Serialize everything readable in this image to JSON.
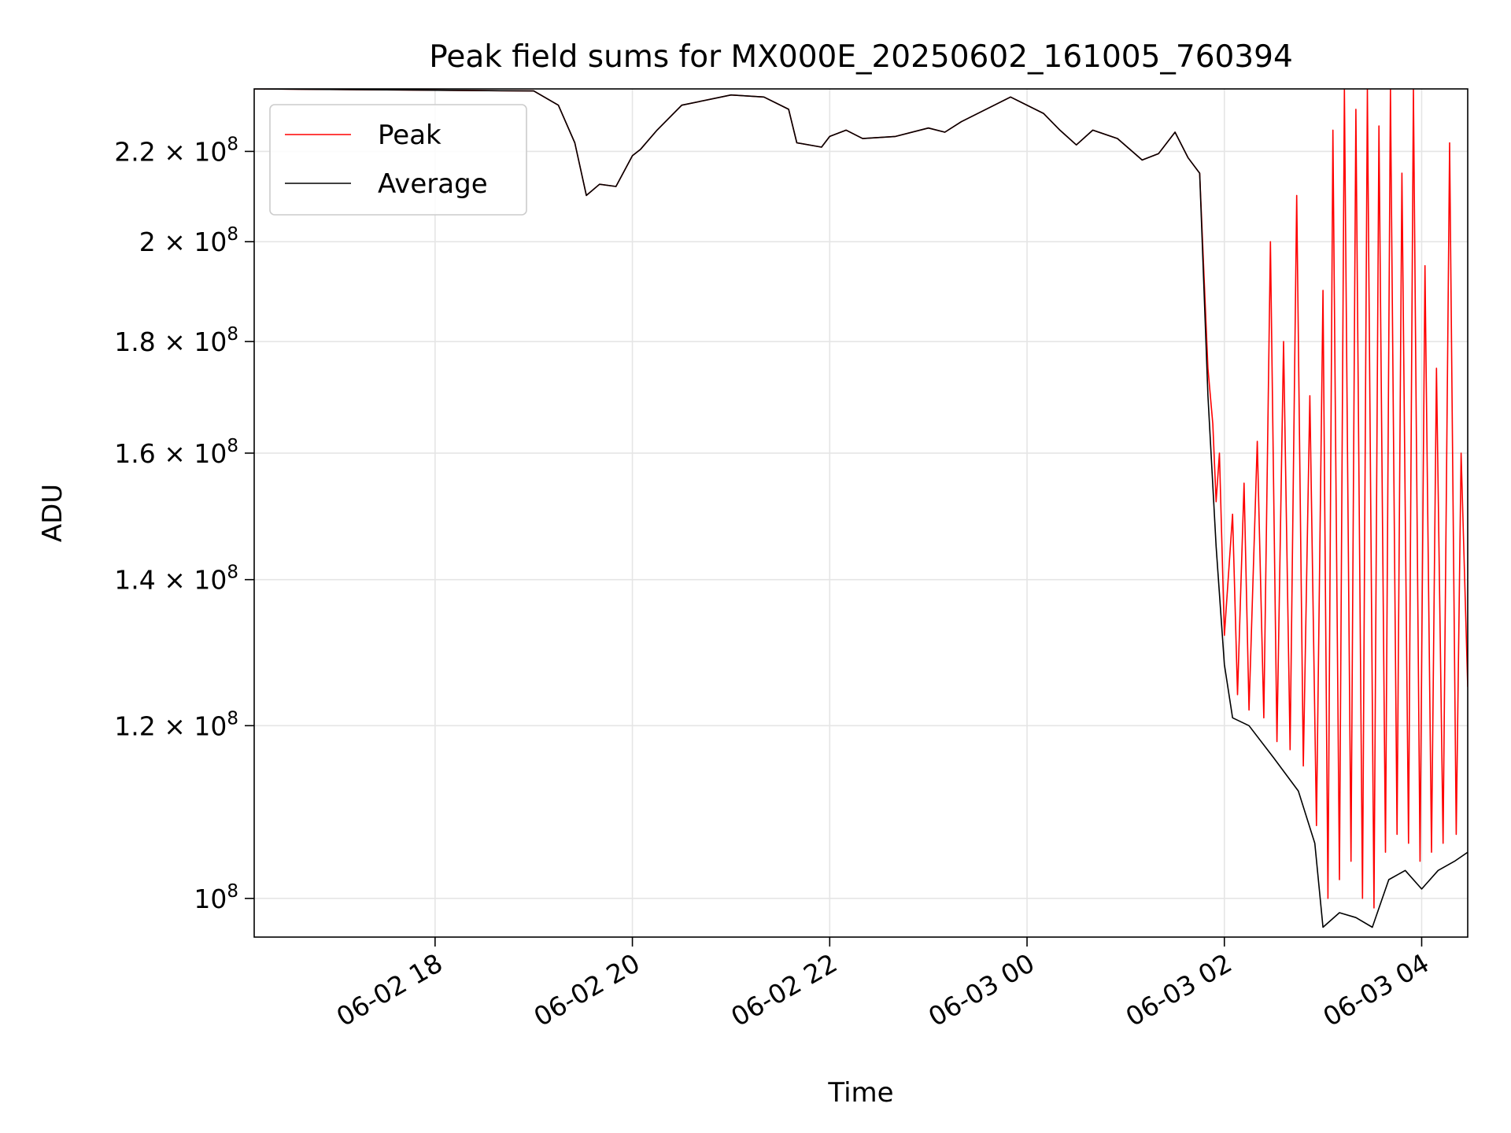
{
  "chart_data": {
    "type": "line",
    "title": "Peak field sums for MX000E_20250602_161005_760394",
    "xlabel": "Time",
    "ylabel": "ADU",
    "yscale": "log",
    "grid": true,
    "legend_position": "top-left",
    "xlim": [
      "2025-06-02T16:10",
      "2025-06-03T04:28"
    ],
    "ylim": [
      96000000,
      235000000
    ],
    "xticks": [
      {
        "t": "2025-06-02T18:00",
        "label": "06-02 18"
      },
      {
        "t": "2025-06-02T20:00",
        "label": "06-02 20"
      },
      {
        "t": "2025-06-02T22:00",
        "label": "06-02 22"
      },
      {
        "t": "2025-06-03T00:00",
        "label": "06-03 00"
      },
      {
        "t": "2025-06-03T02:00",
        "label": "06-03 02"
      },
      {
        "t": "2025-06-03T04:00",
        "label": "06-03 04"
      }
    ],
    "yticks": [
      {
        "value": 100000000,
        "base": "10",
        "exp": "8"
      },
      {
        "value": 120000000,
        "base": "1.2 × 10",
        "exp": "8"
      },
      {
        "value": 140000000,
        "base": "1.4 × 10",
        "exp": "8"
      },
      {
        "value": 160000000,
        "base": "1.6 × 10",
        "exp": "8"
      },
      {
        "value": 180000000,
        "base": "1.8 × 10",
        "exp": "8"
      },
      {
        "value": 200000000,
        "base": "2 × 10",
        "exp": "8"
      },
      {
        "value": 220000000,
        "base": "2.2 × 10",
        "exp": "8"
      }
    ],
    "series": [
      {
        "name": "Average",
        "color": "#000000",
        "points": [
          [
            "2025-06-02T16:10",
            235000000
          ],
          [
            "2025-06-02T19:00",
            234500000
          ],
          [
            "2025-06-02T19:15",
            231000000
          ],
          [
            "2025-06-02T19:25",
            222000000
          ],
          [
            "2025-06-02T19:32",
            210000000
          ],
          [
            "2025-06-02T19:40",
            212500000
          ],
          [
            "2025-06-02T19:50",
            212000000
          ],
          [
            "2025-06-02T20:00",
            219000000
          ],
          [
            "2025-06-02T20:05",
            220500000
          ],
          [
            "2025-06-02T20:15",
            225000000
          ],
          [
            "2025-06-02T20:30",
            231000000
          ],
          [
            "2025-06-02T21:00",
            233500000
          ],
          [
            "2025-06-02T21:20",
            233000000
          ],
          [
            "2025-06-02T21:35",
            230000000
          ],
          [
            "2025-06-02T21:40",
            222000000
          ],
          [
            "2025-06-02T21:55",
            221000000
          ],
          [
            "2025-06-02T22:00",
            223500000
          ],
          [
            "2025-06-02T22:10",
            225000000
          ],
          [
            "2025-06-02T22:20",
            223000000
          ],
          [
            "2025-06-02T22:40",
            223500000
          ],
          [
            "2025-06-02T23:00",
            225500000
          ],
          [
            "2025-06-02T23:10",
            224500000
          ],
          [
            "2025-06-02T23:20",
            227000000
          ],
          [
            "2025-06-02T23:50",
            233000000
          ],
          [
            "2025-06-03T00:10",
            229000000
          ],
          [
            "2025-06-03T00:20",
            225000000
          ],
          [
            "2025-06-03T00:30",
            221500000
          ],
          [
            "2025-06-03T00:40",
            225000000
          ],
          [
            "2025-06-03T00:55",
            223000000
          ],
          [
            "2025-06-03T01:10",
            218000000
          ],
          [
            "2025-06-03T01:20",
            219500000
          ],
          [
            "2025-06-03T01:30",
            224500000
          ],
          [
            "2025-06-03T01:38",
            218500000
          ],
          [
            "2025-06-03T01:45",
            215000000
          ],
          [
            "2025-06-03T01:50",
            170000000
          ],
          [
            "2025-06-03T01:55",
            145000000
          ],
          [
            "2025-06-03T02:00",
            128000000
          ],
          [
            "2025-06-03T02:05",
            121000000
          ],
          [
            "2025-06-03T02:15",
            120000000
          ],
          [
            "2025-06-03T02:30",
            116000000
          ],
          [
            "2025-06-03T02:45",
            112000000
          ],
          [
            "2025-06-03T02:55",
            106000000
          ],
          [
            "2025-06-03T03:00",
            97000000
          ],
          [
            "2025-06-03T03:10",
            98500000
          ],
          [
            "2025-06-03T03:20",
            98000000
          ],
          [
            "2025-06-03T03:30",
            97000000
          ],
          [
            "2025-06-03T03:40",
            102000000
          ],
          [
            "2025-06-03T03:50",
            103000000
          ],
          [
            "2025-06-03T04:00",
            101000000
          ],
          [
            "2025-06-03T04:10",
            103000000
          ],
          [
            "2025-06-03T04:20",
            104000000
          ],
          [
            "2025-06-03T04:28",
            105000000
          ]
        ]
      },
      {
        "name": "Peak",
        "color": "#ff0000",
        "points": [
          [
            "2025-06-02T16:10",
            235000000
          ],
          [
            "2025-06-02T19:00",
            234500000
          ],
          [
            "2025-06-02T19:15",
            231000000
          ],
          [
            "2025-06-02T19:25",
            222000000
          ],
          [
            "2025-06-02T19:32",
            210000000
          ],
          [
            "2025-06-02T19:40",
            212500000
          ],
          [
            "2025-06-02T19:50",
            212000000
          ],
          [
            "2025-06-02T20:00",
            219000000
          ],
          [
            "2025-06-02T20:05",
            220500000
          ],
          [
            "2025-06-02T20:15",
            225000000
          ],
          [
            "2025-06-02T20:30",
            231000000
          ],
          [
            "2025-06-02T21:00",
            233500000
          ],
          [
            "2025-06-02T21:20",
            233000000
          ],
          [
            "2025-06-02T21:35",
            230000000
          ],
          [
            "2025-06-02T21:40",
            222000000
          ],
          [
            "2025-06-02T21:55",
            221000000
          ],
          [
            "2025-06-02T22:00",
            223500000
          ],
          [
            "2025-06-02T22:10",
            225000000
          ],
          [
            "2025-06-02T22:20",
            223000000
          ],
          [
            "2025-06-02T22:40",
            223500000
          ],
          [
            "2025-06-02T23:00",
            225500000
          ],
          [
            "2025-06-02T23:10",
            224500000
          ],
          [
            "2025-06-02T23:20",
            227000000
          ],
          [
            "2025-06-02T23:50",
            233000000
          ],
          [
            "2025-06-03T00:10",
            229000000
          ],
          [
            "2025-06-03T00:20",
            225000000
          ],
          [
            "2025-06-03T00:30",
            221500000
          ],
          [
            "2025-06-03T00:40",
            225000000
          ],
          [
            "2025-06-03T00:55",
            223000000
          ],
          [
            "2025-06-03T01:10",
            218000000
          ],
          [
            "2025-06-03T01:20",
            219500000
          ],
          [
            "2025-06-03T01:30",
            224500000
          ],
          [
            "2025-06-03T01:38",
            218500000
          ],
          [
            "2025-06-03T01:45",
            215000000
          ],
          [
            "2025-06-03T01:50",
            175000000
          ],
          [
            "2025-06-03T01:53",
            165000000
          ],
          [
            "2025-06-03T01:55",
            152000000
          ],
          [
            "2025-06-03T01:57",
            160000000
          ],
          [
            "2025-06-03T02:00",
            132000000
          ],
          [
            "2025-06-03T02:05",
            150000000
          ],
          [
            "2025-06-03T02:08",
            124000000
          ],
          [
            "2025-06-03T02:12",
            155000000
          ],
          [
            "2025-06-03T02:15",
            122000000
          ],
          [
            "2025-06-03T02:20",
            162000000
          ],
          [
            "2025-06-03T02:24",
            121000000
          ],
          [
            "2025-06-03T02:28",
            200000000
          ],
          [
            "2025-06-03T02:32",
            118000000
          ],
          [
            "2025-06-03T02:36",
            180000000
          ],
          [
            "2025-06-03T02:40",
            117000000
          ],
          [
            "2025-06-03T02:44",
            210000000
          ],
          [
            "2025-06-03T02:48",
            115000000
          ],
          [
            "2025-06-03T02:52",
            170000000
          ],
          [
            "2025-06-03T02:56",
            108000000
          ],
          [
            "2025-06-03T03:00",
            190000000
          ],
          [
            "2025-06-03T03:03",
            100000000
          ],
          [
            "2025-06-03T03:06",
            225000000
          ],
          [
            "2025-06-03T03:10",
            102000000
          ],
          [
            "2025-06-03T03:13",
            235000000
          ],
          [
            "2025-06-03T03:17",
            104000000
          ],
          [
            "2025-06-03T03:20",
            230000000
          ],
          [
            "2025-06-03T03:24",
            100000000
          ],
          [
            "2025-06-03T03:27",
            235000000
          ],
          [
            "2025-06-03T03:31",
            99000000
          ],
          [
            "2025-06-03T03:34",
            226000000
          ],
          [
            "2025-06-03T03:38",
            105000000
          ],
          [
            "2025-06-03T03:41",
            235000000
          ],
          [
            "2025-06-03T03:45",
            107000000
          ],
          [
            "2025-06-03T03:48",
            215000000
          ],
          [
            "2025-06-03T03:52",
            106000000
          ],
          [
            "2025-06-03T03:55",
            235000000
          ],
          [
            "2025-06-03T03:59",
            104000000
          ],
          [
            "2025-06-03T04:02",
            195000000
          ],
          [
            "2025-06-03T04:06",
            105000000
          ],
          [
            "2025-06-03T04:09",
            175000000
          ],
          [
            "2025-06-03T04:13",
            106000000
          ],
          [
            "2025-06-03T04:17",
            222000000
          ],
          [
            "2025-06-03T04:21",
            107000000
          ],
          [
            "2025-06-03T04:24",
            160000000
          ],
          [
            "2025-06-03T04:28",
            125000000
          ]
        ]
      }
    ]
  }
}
